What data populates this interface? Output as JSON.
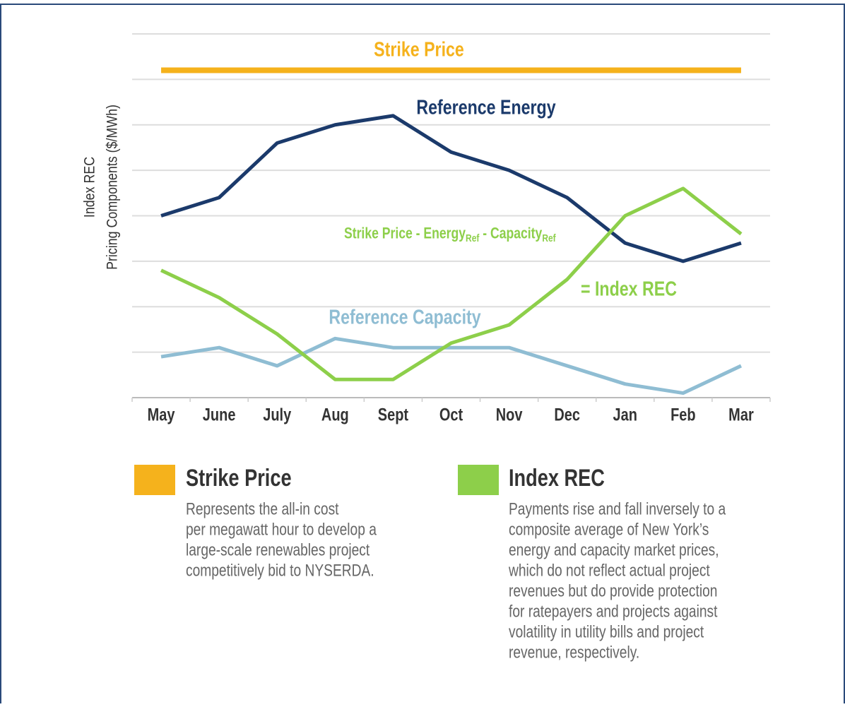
{
  "chart_data": {
    "type": "line",
    "y_label": [
      "Index REC",
      "Pricing Components  ($/MWh)"
    ],
    "categories": [
      "May",
      "June",
      "July",
      "Aug",
      "Sept",
      "Oct",
      "Nov",
      "Dec",
      "Jan",
      "Feb",
      "Mar"
    ],
    "ylim": [
      0,
      8
    ],
    "yticks": [
      0,
      1,
      2,
      3,
      4,
      5,
      6,
      7,
      8
    ],
    "grid": true,
    "series": [
      {
        "name": "Strike Price",
        "color": "#f5b21c",
        "values": [
          7.2,
          7.2,
          7.2,
          7.2,
          7.2,
          7.2,
          7.2,
          7.2,
          7.2,
          7.2,
          7.2
        ],
        "description": [
          "Represents the all-in cost",
          "per megawatt hour to develop a",
          "large-scale renewables project",
          "competitively bid to NYSERDA."
        ]
      },
      {
        "name": "Reference Energy",
        "color": "#1b3a6b",
        "values": [
          4.0,
          4.4,
          5.6,
          6.0,
          6.2,
          5.4,
          5.0,
          4.4,
          3.4,
          3.0,
          3.4
        ]
      },
      {
        "name": "Index REC",
        "color": "#8dcf4a",
        "values": [
          2.8,
          2.2,
          1.4,
          0.4,
          0.4,
          1.2,
          1.6,
          2.6,
          4.0,
          4.6,
          3.6
        ],
        "description": [
          "Payments rise and fall inversely to a",
          "composite average of New York’s",
          "energy and capacity market prices,",
          "which do not reflect actual project",
          "revenues but do provide protection",
          "for ratepayers and projects against",
          "volatility in utility bills and project",
          "revenue, respectively."
        ]
      },
      {
        "name": "Reference Capacity",
        "color": "#8fbdd3",
        "values": [
          0.9,
          1.1,
          0.7,
          1.3,
          1.1,
          1.1,
          1.1,
          0.7,
          0.3,
          0.1,
          0.7
        ]
      }
    ],
    "annotations": [
      {
        "parts": [
          "Strike Price  -  Energy",
          "Ref",
          " -  Capacity",
          "Ref"
        ]
      },
      {
        "text": "= Index REC"
      }
    ]
  }
}
